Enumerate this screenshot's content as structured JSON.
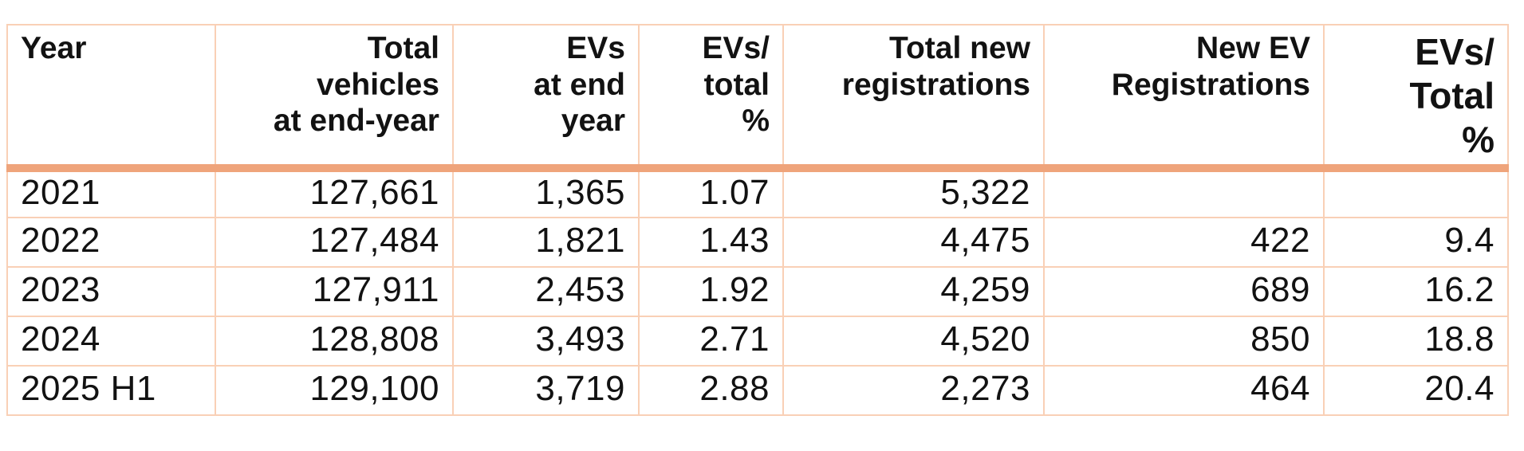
{
  "chart_data": {
    "type": "table",
    "columns": [
      {
        "key": "year",
        "label": "Year",
        "align": "left",
        "large": false
      },
      {
        "key": "total-vehicles",
        "label": "Total\nvehicles\nat end-year",
        "align": "right",
        "large": false
      },
      {
        "key": "evs-at-end-year",
        "label": "EVs\nat end\nyear",
        "align": "right",
        "large": false
      },
      {
        "key": "evs-total-pct",
        "label": "EVs/\ntotal\n%",
        "align": "right",
        "large": false
      },
      {
        "key": "total-new-reg",
        "label": "Total new\nregistrations",
        "align": "right",
        "large": false
      },
      {
        "key": "new-ev-reg",
        "label": "New EV\nRegistrations",
        "align": "right",
        "large": false
      },
      {
        "key": "new-evs-total-pct",
        "label": "EVs/\nTotal\n%",
        "align": "right",
        "large": true
      }
    ],
    "rows": [
      {
        "cells": [
          "2021",
          "127,661",
          "1,365",
          "1.07",
          "5,322",
          "",
          ""
        ]
      },
      {
        "cells": [
          "2022",
          "127,484",
          "1,821",
          "1.43",
          "4,475",
          "422",
          "9.4"
        ]
      },
      {
        "cells": [
          "2023",
          "127,911",
          "2,453",
          "1.92",
          "4,259",
          "689",
          "16.2"
        ]
      },
      {
        "cells": [
          "2024",
          "128,808",
          "3,493",
          "2.71",
          "4,520",
          "850",
          "18.8"
        ]
      },
      {
        "cells": [
          "2025 H1",
          "129,100",
          "3,719",
          "2.88",
          "2,273",
          "464",
          "20.4"
        ]
      }
    ],
    "colors": {
      "thin_border": "#f9d0b6",
      "header_rule": "#efa47b",
      "text": "#121212",
      "background": "#ffffff"
    }
  }
}
